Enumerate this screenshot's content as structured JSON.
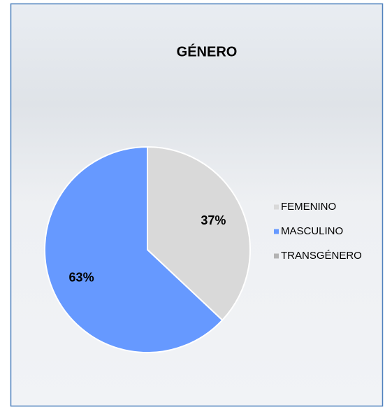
{
  "chart_data": {
    "type": "pie",
    "title": "GÉNERO",
    "categories": [
      "FEMENINO",
      "MASCULINO",
      "TRANSGÉNERO"
    ],
    "values": [
      37,
      63,
      0
    ],
    "value_labels": [
      "37%",
      "63%",
      null
    ],
    "colors": [
      "#d9d9d9",
      "#6699ff",
      "#b3b3b3"
    ],
    "legend": "right"
  }
}
